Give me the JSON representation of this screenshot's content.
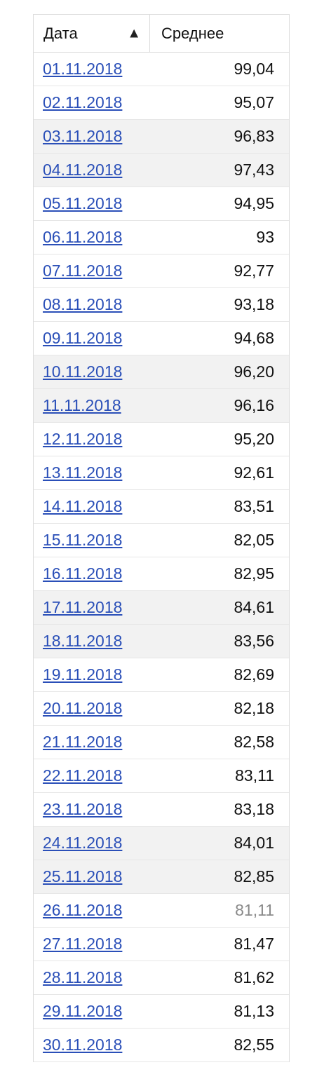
{
  "table": {
    "headers": {
      "date": "Дата",
      "average": "Среднее"
    },
    "rows": [
      {
        "date": "01.11.2018",
        "value": "99,04"
      },
      {
        "date": "02.11.2018",
        "value": "95,07"
      },
      {
        "date": "03.11.2018",
        "value": "96,83"
      },
      {
        "date": "04.11.2018",
        "value": "97,43"
      },
      {
        "date": "05.11.2018",
        "value": "94,95"
      },
      {
        "date": "06.11.2018",
        "value": "93"
      },
      {
        "date": "07.11.2018",
        "value": "92,77"
      },
      {
        "date": "08.11.2018",
        "value": "93,18"
      },
      {
        "date": "09.11.2018",
        "value": "94,68"
      },
      {
        "date": "10.11.2018",
        "value": "96,20"
      },
      {
        "date": "11.11.2018",
        "value": "96,16"
      },
      {
        "date": "12.11.2018",
        "value": "95,20"
      },
      {
        "date": "13.11.2018",
        "value": "92,61"
      },
      {
        "date": "14.11.2018",
        "value": "83,51"
      },
      {
        "date": "15.11.2018",
        "value": "82,05"
      },
      {
        "date": "16.11.2018",
        "value": "82,95"
      },
      {
        "date": "17.11.2018",
        "value": "84,61"
      },
      {
        "date": "18.11.2018",
        "value": "83,56"
      },
      {
        "date": "19.11.2018",
        "value": "82,69"
      },
      {
        "date": "20.11.2018",
        "value": "82,18"
      },
      {
        "date": "21.11.2018",
        "value": "82,58"
      },
      {
        "date": "22.11.2018",
        "value": "83,11"
      },
      {
        "date": "23.11.2018",
        "value": "83,18"
      },
      {
        "date": "24.11.2018",
        "value": "84,01"
      },
      {
        "date": "25.11.2018",
        "value": "82,85"
      },
      {
        "date": "26.11.2018",
        "value": "81,11"
      },
      {
        "date": "27.11.2018",
        "value": "81,47"
      },
      {
        "date": "28.11.2018",
        "value": "81,62"
      },
      {
        "date": "29.11.2018",
        "value": "81,13"
      },
      {
        "date": "30.11.2018",
        "value": "82,55"
      }
    ]
  },
  "icons": {
    "sort": "sort-ascending-icon"
  },
  "colors": {
    "link": "#2a4fb8",
    "dim_value": "#8a8a8a",
    "weekend_row": "#f2f2f2"
  }
}
